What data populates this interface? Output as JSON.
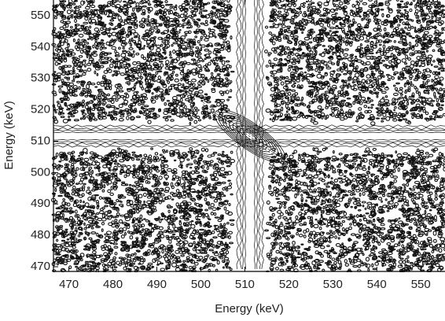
{
  "chart_data": {
    "type": "contour",
    "x_label": "Energy (keV)",
    "y_label": "Energy (keV)",
    "xlim": [
      466.5,
      555.5
    ],
    "xticks": [
      470,
      480,
      490,
      500,
      510,
      520,
      530,
      540,
      550
    ],
    "ylim": [
      468.5,
      555
    ],
    "yticks": [
      470,
      480,
      490,
      500,
      510,
      520,
      530,
      540,
      550
    ],
    "grid": false,
    "color": "#111111"
  }
}
